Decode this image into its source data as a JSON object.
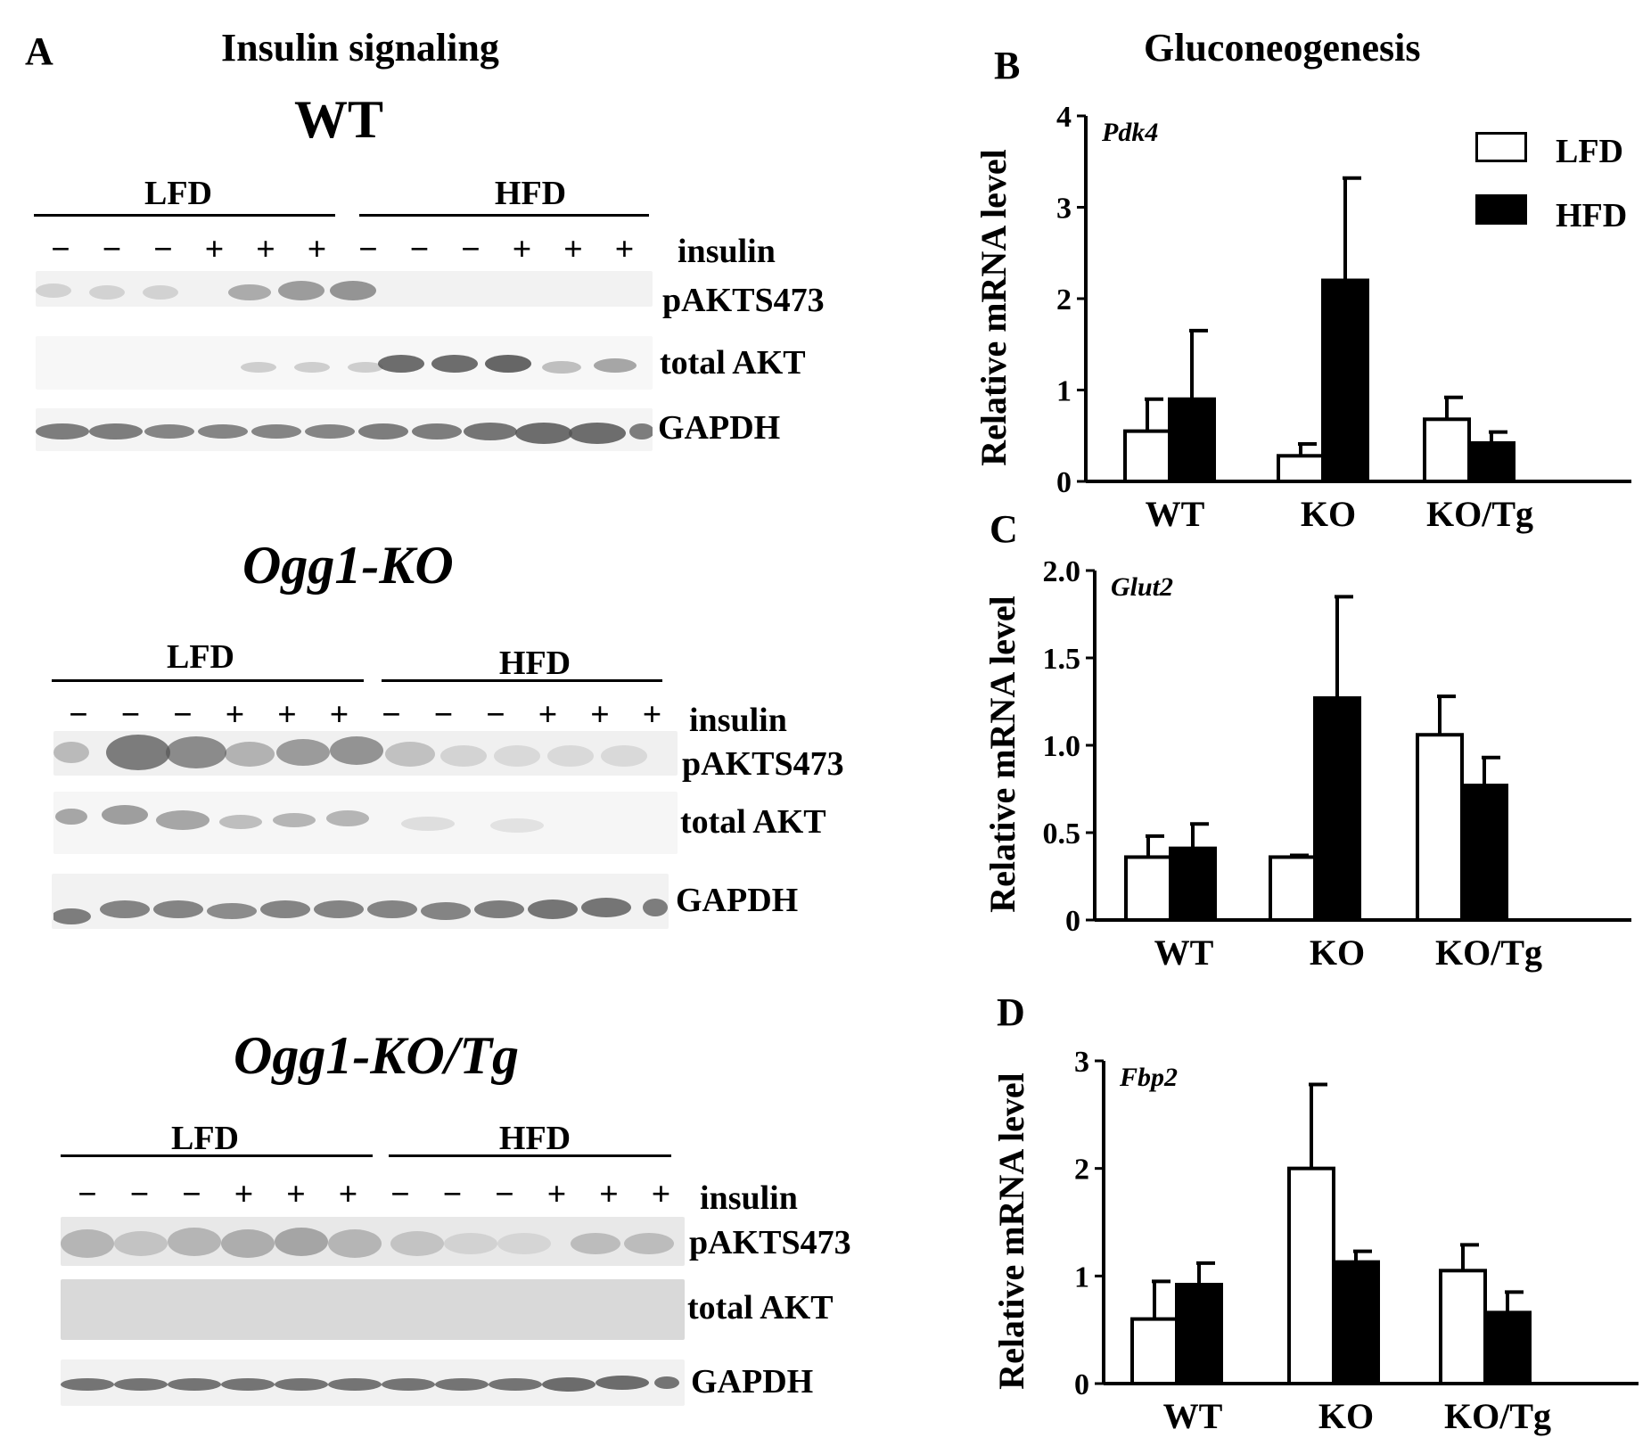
{
  "panelA": {
    "letter": "A",
    "title": "Insulin signaling",
    "blocks": [
      {
        "genotype": "WT",
        "italic": false,
        "group_labels": [
          "LFD",
          "HFD"
        ],
        "insulin_signs": [
          "−",
          "−",
          "−",
          "+",
          "+",
          "+",
          "−",
          "−",
          "−",
          "+",
          "+",
          "+"
        ],
        "insulin_label": "insulin",
        "rows": [
          "pAKTS473",
          "total AKT",
          "GAPDH"
        ]
      },
      {
        "genotype": "Ogg1-KO",
        "italic": true,
        "group_labels": [
          "LFD",
          "HFD"
        ],
        "insulin_signs": [
          "−",
          "−",
          "−",
          "+",
          "+",
          "+",
          "−",
          "−",
          "−",
          "+",
          "+",
          "+"
        ],
        "insulin_label": "insulin",
        "rows": [
          "pAKTS473",
          "total AKT",
          "GAPDH"
        ]
      },
      {
        "genotype": "Ogg1-KO/Tg",
        "italic": true,
        "group_labels": [
          "LFD",
          "HFD"
        ],
        "insulin_signs": [
          "−",
          "−",
          "−",
          "+",
          "+",
          "+",
          "−",
          "−",
          "−",
          "+",
          "+",
          "+"
        ],
        "insulin_label": "insulin",
        "rows": [
          "pAKTS473",
          "total AKT",
          "GAPDH"
        ]
      }
    ]
  },
  "gluconeogenesis_title": "Gluconeogenesis",
  "legend": {
    "items": [
      "LFD",
      "HFD"
    ]
  },
  "colors": {
    "lfd_fill": "#ffffff",
    "hfd_fill": "#000000",
    "axis": "#000000"
  },
  "chart_data": [
    {
      "panel": "B",
      "type": "bar",
      "gene": "Pdk4",
      "ylabel": "Relative mRNA level",
      "categories": [
        "WT",
        "KO",
        "KO/Tg"
      ],
      "ylim": [
        0,
        4
      ],
      "yticks": [
        "0",
        "1",
        "2",
        "3",
        "4"
      ],
      "ytick_values": [
        0,
        1,
        2,
        3,
        4
      ],
      "series": [
        {
          "name": "LFD",
          "values": [
            0.55,
            0.28,
            0.68
          ],
          "errors": [
            0.35,
            0.13,
            0.24
          ]
        },
        {
          "name": "HFD",
          "values": [
            0.9,
            2.2,
            0.42
          ],
          "errors": [
            0.75,
            1.12,
            0.12
          ]
        }
      ]
    },
    {
      "panel": "C",
      "type": "bar",
      "gene": "Glut2",
      "ylabel": "Relative mRNA level",
      "categories": [
        "WT",
        "KO",
        "KO/Tg"
      ],
      "ylim": [
        0,
        2.0
      ],
      "yticks": [
        "0",
        "0.5",
        "1.0",
        "1.5",
        "2.0"
      ],
      "ytick_values": [
        0,
        0.5,
        1.0,
        1.5,
        2.0
      ],
      "series": [
        {
          "name": "LFD",
          "values": [
            0.36,
            0.36,
            1.06
          ],
          "errors": [
            0.12,
            0.01,
            0.22
          ]
        },
        {
          "name": "HFD",
          "values": [
            0.41,
            1.27,
            0.77
          ],
          "errors": [
            0.14,
            0.58,
            0.16
          ]
        }
      ]
    },
    {
      "panel": "D",
      "type": "bar",
      "gene": "Fbp2",
      "ylabel": "Relative mRNA level",
      "categories": [
        "WT",
        "KO",
        "KO/Tg"
      ],
      "ylim": [
        0,
        3
      ],
      "yticks": [
        "0",
        "1",
        "2",
        "3"
      ],
      "ytick_values": [
        0,
        1,
        2,
        3
      ],
      "series": [
        {
          "name": "LFD",
          "values": [
            0.6,
            2.0,
            1.05
          ],
          "errors": [
            0.35,
            0.78,
            0.24
          ]
        },
        {
          "name": "HFD",
          "values": [
            0.92,
            1.13,
            0.66
          ],
          "errors": [
            0.2,
            0.1,
            0.19
          ]
        }
      ]
    }
  ]
}
